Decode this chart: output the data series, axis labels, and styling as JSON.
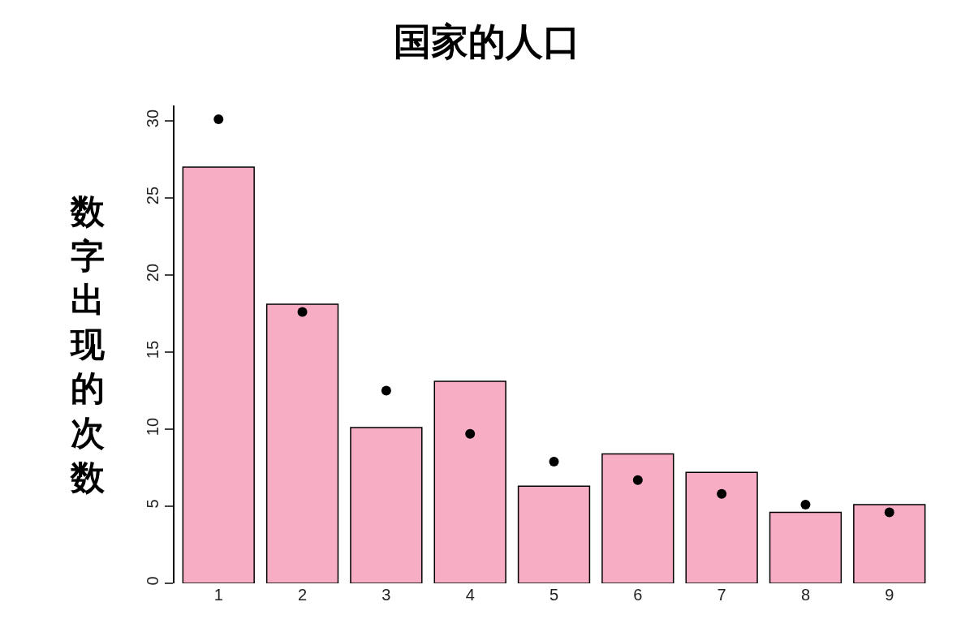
{
  "chart_data": {
    "type": "bar",
    "title": "国家的人口",
    "ylabel": "数字出现的次数",
    "categories": [
      "1",
      "2",
      "3",
      "4",
      "5",
      "6",
      "7",
      "8",
      "9"
    ],
    "series": [
      {
        "color": "#f7aec4",
        "values": [
          27.0,
          18.1,
          10.1,
          13.1,
          6.3,
          8.4,
          7.2,
          4.6,
          5.1
        ]
      },
      {
        "type": "scatter",
        "color": "#000000",
        "marker": "circle",
        "x": [
          "1",
          "2",
          "3",
          "4",
          "5",
          "6",
          "7",
          "8",
          "9"
        ],
        "values": [
          30.1,
          17.6,
          12.5,
          9.7,
          7.9,
          6.7,
          5.8,
          5.1,
          4.6
        ]
      }
    ],
    "ylim": [
      0,
      31
    ],
    "yticks": [
      0,
      5,
      10,
      15,
      20,
      25,
      30
    ],
    "grid": false
  }
}
